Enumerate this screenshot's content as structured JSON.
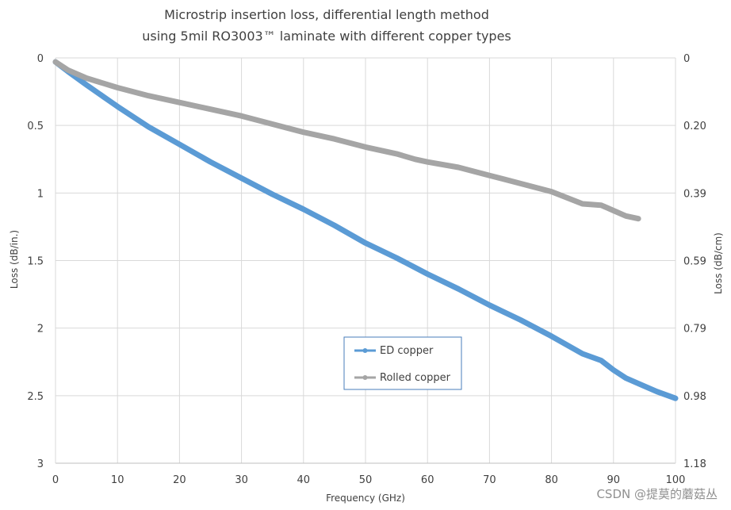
{
  "chart_data": {
    "type": "line",
    "title_line1": "Microstrip insertion loss, differential length method",
    "title_line2": "using 5mil RO3003™ laminate with different copper types",
    "xlabel": "Frequency (GHz)",
    "ylabel_left": "Loss (dB/in.)",
    "ylabel_right": "Loss (dB/cm)",
    "xlim": [
      0,
      100
    ],
    "ylim": [
      0,
      3
    ],
    "y_inverted": true,
    "grid": true,
    "legend_position": "center-bottom",
    "x_ticks": [
      0,
      10,
      20,
      30,
      40,
      50,
      60,
      70,
      80,
      90,
      100
    ],
    "y_ticks_left": [
      "0",
      "0.5",
      "1",
      "1.5",
      "2",
      "2.5",
      "3"
    ],
    "y_ticks_right": [
      "0",
      "0.20",
      "0.39",
      "0.59",
      "0.79",
      "0.98",
      "1.18"
    ],
    "series": [
      {
        "name": "ED copper",
        "color": "#5b9bd5",
        "x": [
          0,
          2,
          5,
          10,
          15,
          20,
          25,
          30,
          35,
          40,
          45,
          50,
          55,
          60,
          65,
          70,
          75,
          80,
          85,
          88,
          90,
          92,
          95,
          97,
          100
        ],
        "y": [
          0.03,
          0.1,
          0.2,
          0.36,
          0.51,
          0.64,
          0.77,
          0.89,
          1.01,
          1.12,
          1.24,
          1.37,
          1.48,
          1.6,
          1.71,
          1.83,
          1.94,
          2.06,
          2.19,
          2.24,
          2.31,
          2.37,
          2.43,
          2.47,
          2.52
        ]
      },
      {
        "name": "Rolled copper",
        "color": "#a5a5a5",
        "x": [
          0,
          2,
          5,
          10,
          15,
          20,
          25,
          30,
          35,
          40,
          45,
          50,
          55,
          58,
          60,
          65,
          70,
          75,
          80,
          85,
          88,
          90,
          92,
          94
        ],
        "y": [
          0.03,
          0.09,
          0.15,
          0.22,
          0.28,
          0.33,
          0.38,
          0.43,
          0.49,
          0.55,
          0.6,
          0.66,
          0.71,
          0.75,
          0.77,
          0.81,
          0.87,
          0.93,
          0.99,
          1.08,
          1.09,
          1.13,
          1.17,
          1.19
        ]
      }
    ]
  },
  "watermark": "CSDN @提莫的蘑菇丛"
}
